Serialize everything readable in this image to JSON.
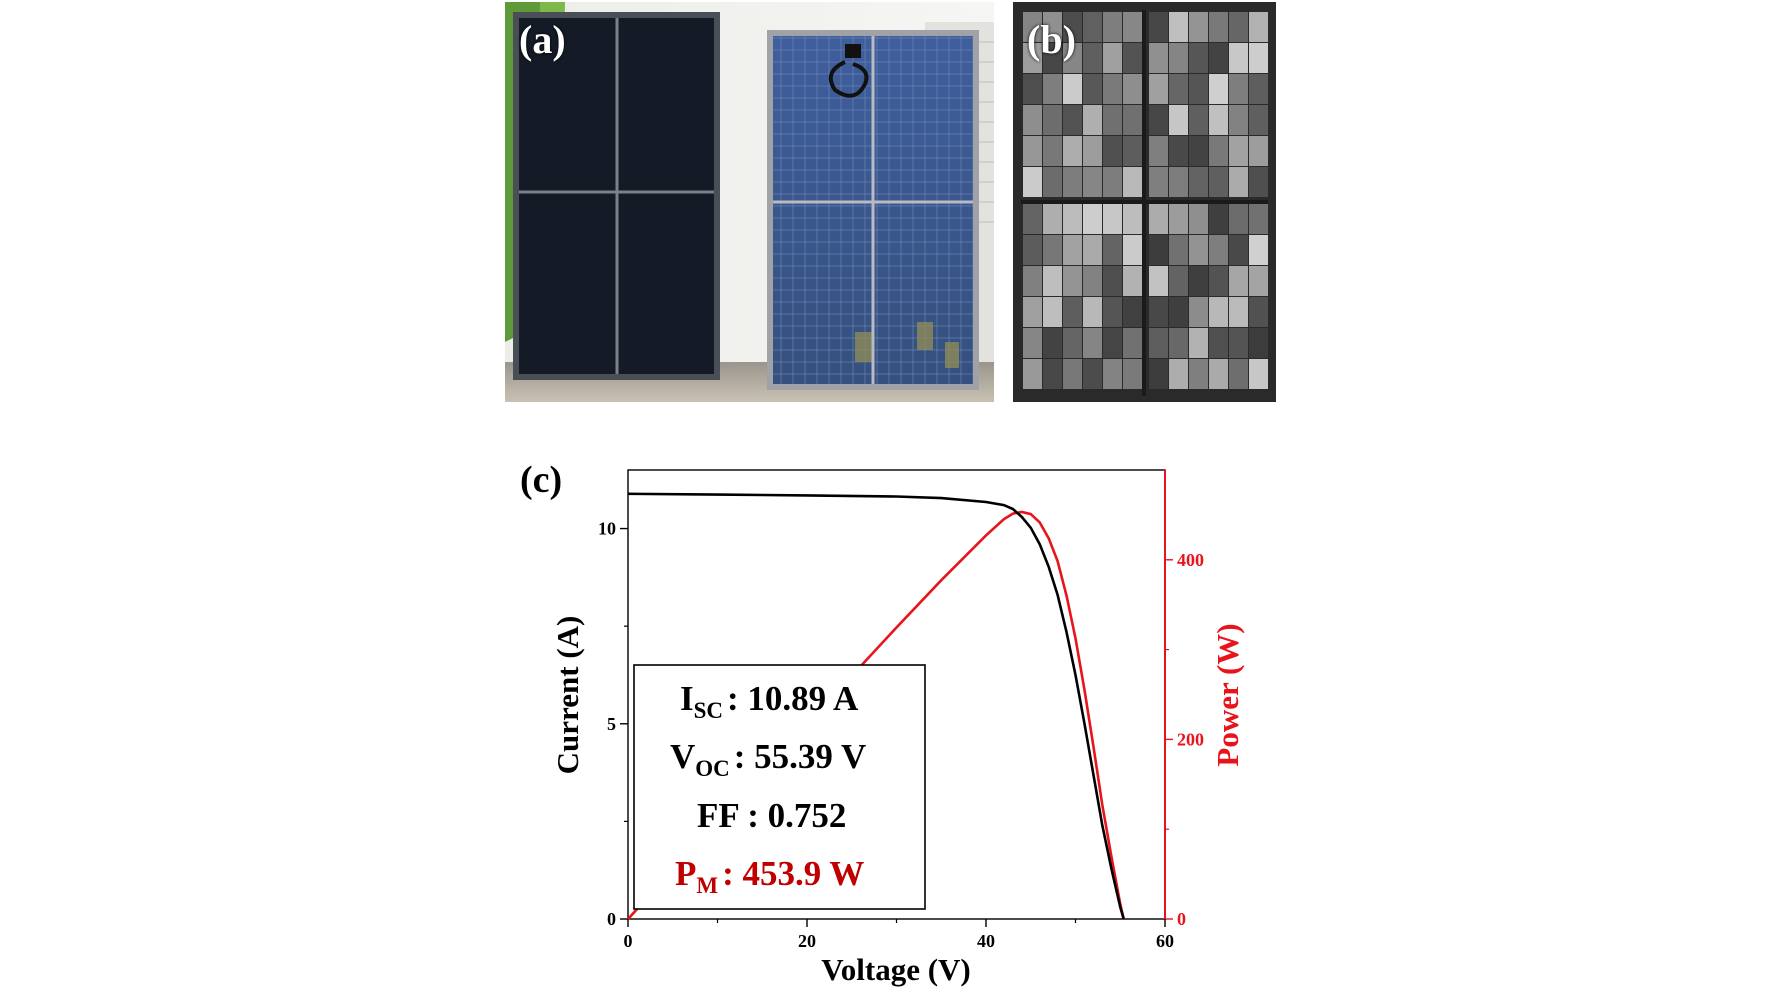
{
  "panel_labels": {
    "a": "(a)",
    "b": "(b)",
    "c": "(c)"
  },
  "colors": {
    "current": "#000000",
    "power": "#e8141b",
    "pm_text": "#c00000"
  },
  "chart_data": {
    "type": "line",
    "x_axis": {
      "label": "Voltage (V)",
      "range": [
        0,
        60
      ],
      "ticks": [
        0,
        20,
        40,
        60
      ]
    },
    "y_left": {
      "label": "Current (A)",
      "range": [
        0,
        11.5
      ],
      "ticks": [
        0,
        5,
        10
      ]
    },
    "y_right": {
      "label": "Power (W)",
      "range": [
        0,
        500
      ],
      "ticks": [
        0,
        200,
        400
      ]
    },
    "series": [
      {
        "axis": "left",
        "color": "#000000",
        "x": [
          0,
          10,
          20,
          30,
          35,
          40,
          42,
          43,
          44,
          45,
          46,
          47,
          48,
          49,
          50,
          51,
          52,
          53,
          54,
          55,
          55.39
        ],
        "y": [
          10.89,
          10.87,
          10.85,
          10.82,
          10.78,
          10.68,
          10.6,
          10.5,
          10.3,
          10.02,
          9.6,
          9.02,
          8.3,
          7.35,
          6.25,
          5.0,
          3.7,
          2.4,
          1.3,
          0.3,
          0
        ]
      },
      {
        "axis": "right",
        "color": "#e8141b",
        "x": [
          0,
          10,
          20,
          30,
          35,
          40,
          42,
          43,
          44,
          45,
          46,
          47,
          48,
          49,
          50,
          51,
          52,
          53,
          54,
          55,
          55.39
        ],
        "y": [
          0,
          108.7,
          217,
          324.6,
          377.3,
          427.2,
          445.2,
          451.5,
          453.2,
          450.9,
          441.6,
          423.9,
          398.4,
          360.2,
          312.5,
          255,
          192.4,
          127.2,
          70.2,
          16.5,
          0
        ]
      }
    ],
    "annotations": {
      "isc": {
        "symbol": "I",
        "sub": "SC",
        "value": ": 10.89 A"
      },
      "voc": {
        "symbol": "V",
        "sub": "OC",
        "value": ": 55.39 V"
      },
      "ff": {
        "text": "FF : 0.752"
      },
      "pm": {
        "symbol": "P",
        "sub": "M",
        "value": ": 453.9 W"
      }
    }
  }
}
